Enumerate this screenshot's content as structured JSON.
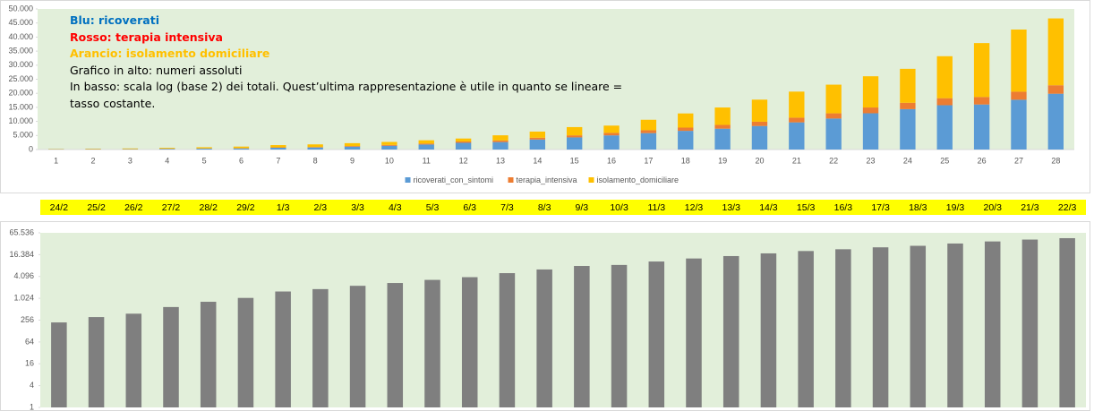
{
  "chart_data": [
    {
      "type": "stacked_bar",
      "categories": [
        "1",
        "2",
        "3",
        "4",
        "5",
        "6",
        "7",
        "8",
        "9",
        "10",
        "11",
        "12",
        "13",
        "14",
        "15",
        "16",
        "17",
        "18",
        "19",
        "20",
        "21",
        "22",
        "23",
        "24",
        "25",
        "26",
        "27",
        "28"
      ],
      "series": [
        {
          "name": "ricoverati_con_sintomi",
          "color": "#5b9bd5",
          "values": [
            101,
            114,
            128,
            248,
            345,
            401,
            639,
            742,
            1034,
            1346,
            1790,
            2394,
            2651,
            3557,
            4316,
            5038,
            5838,
            6650,
            7426,
            8372,
            9663,
            11025,
            12894,
            14363,
            15757,
            16020,
            17708,
            19846
          ]
        },
        {
          "name": "terapia_intensiva",
          "color": "#ed7d31",
          "values": [
            26,
            35,
            36,
            56,
            64,
            105,
            140,
            166,
            229,
            295,
            351,
            462,
            567,
            650,
            733,
            877,
            1028,
            1153,
            1328,
            1518,
            1672,
            1851,
            2060,
            2257,
            2498,
            2655,
            2857,
            3009
          ]
        },
        {
          "name": "isolamento_domiciliare",
          "color": "#ffc000",
          "values": [
            94,
            162,
            221,
            284,
            412,
            543,
            798,
            927,
            1000,
            1065,
            1155,
            1060,
            1843,
            2180,
            2936,
            2599,
            3724,
            5036,
            6201,
            7860,
            9268,
            10197,
            11108,
            12090,
            14935,
            19185,
            22116,
            23783
          ]
        }
      ],
      "ylim": [
        0,
        50000
      ],
      "yticks": [
        0,
        {
          "value": 5000,
          "label": "5.000"
        },
        {
          "value": 10000,
          "label": "10.000"
        },
        {
          "value": 15000,
          "label": "15.000"
        },
        {
          "value": 20000,
          "label": "20.000"
        },
        {
          "value": 25000,
          "label": "25.000"
        },
        {
          "value": 30000,
          "label": "30.000"
        },
        {
          "value": 35000,
          "label": "35.000"
        },
        {
          "value": 40000,
          "label": "40.000"
        },
        {
          "value": 45000,
          "label": "45.000"
        },
        {
          "value": 50000,
          "label": "50.000"
        }
      ],
      "grid": false,
      "legend": "bottom",
      "background": "#e2efda",
      "annotations": [
        {
          "text": "Blu: ricoverati",
          "color": "#0070c0",
          "bold": true
        },
        {
          "text": "Rosso: terapia intensiva",
          "color": "#ff0000",
          "bold": true
        },
        {
          "text": "Arancio: isolamento domiciliare",
          "color": "#ffc000",
          "bold": true
        },
        {
          "text": "Grafico in alto: numeri assoluti",
          "color": "#000000",
          "bold": false
        },
        {
          "text": "In basso: scala log (base 2) dei totali. Quest’ultima rappresentazione è utile in quanto se lineare = tasso costante.",
          "color": "#000000",
          "bold": false
        }
      ]
    },
    {
      "type": "bar",
      "categories": [
        "24/2",
        "25/2",
        "26/2",
        "27/2",
        "28/2",
        "29/2",
        "1/3",
        "2/3",
        "3/3",
        "4/3",
        "5/3",
        "6/3",
        "7/3",
        "8/3",
        "9/3",
        "10/3",
        "11/3",
        "12/3",
        "13/3",
        "14/3",
        "15/3",
        "16/3",
        "17/3",
        "18/3",
        "19/3",
        "20/3",
        "21/3",
        "22/3"
      ],
      "values": [
        221,
        311,
        385,
        588,
        821,
        1049,
        1577,
        1835,
        2263,
        2706,
        3296,
        3916,
        5061,
        6387,
        7985,
        8514,
        10590,
        12839,
        14955,
        17750,
        20603,
        23073,
        26062,
        28710,
        33190,
        37860,
        42681,
        46638
      ],
      "color": "#7f7f7f",
      "category_band_color": "#ffff00",
      "log_scale": true,
      "log_base": 2,
      "ylim": [
        1,
        65536
      ],
      "yticks": [
        1,
        4,
        16,
        64,
        256,
        {
          "value": 1024,
          "label": "1.024"
        },
        {
          "value": 4096,
          "label": "4.096"
        },
        {
          "value": 16384,
          "label": "16.384"
        },
        {
          "value": 65536,
          "label": "65.536"
        }
      ],
      "grid": false,
      "background": "#e2efda"
    }
  ]
}
